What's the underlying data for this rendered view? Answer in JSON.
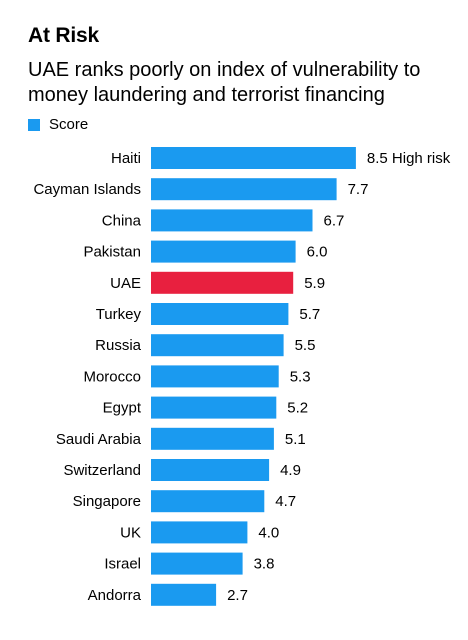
{
  "chart_data": {
    "type": "bar",
    "orientation": "horizontal",
    "title": "At Risk",
    "subtitle": "UAE ranks poorly on index of vulnerability to money laundering and terrorist financing",
    "legend": [
      "Score"
    ],
    "categories": [
      "Haiti",
      "Cayman Islands",
      "China",
      "Pakistan",
      "UAE",
      "Turkey",
      "Russia",
      "Morocco",
      "Egypt",
      "Saudi Arabia",
      "Switzerland",
      "Singapore",
      "UK",
      "Israel",
      "Andorra"
    ],
    "series": [
      {
        "name": "Score",
        "values": [
          8.5,
          7.7,
          6.7,
          6.0,
          5.9,
          5.7,
          5.5,
          5.3,
          5.2,
          5.1,
          4.9,
          4.7,
          4.0,
          3.8,
          2.7
        ],
        "labels": [
          "8.5 High risk",
          "7.7",
          "6.7",
          "6.0",
          "5.9",
          "5.7",
          "5.5",
          "5.3",
          "5.2",
          "5.1",
          "4.9",
          "4.7",
          "4.0",
          "3.8",
          "2.7"
        ]
      }
    ],
    "highlight": "UAE",
    "colors": {
      "default": "#1a9af0",
      "highlight": "#e8203f"
    },
    "xlim": [
      0,
      10
    ],
    "grid": false,
    "legend_position": "top-left"
  }
}
